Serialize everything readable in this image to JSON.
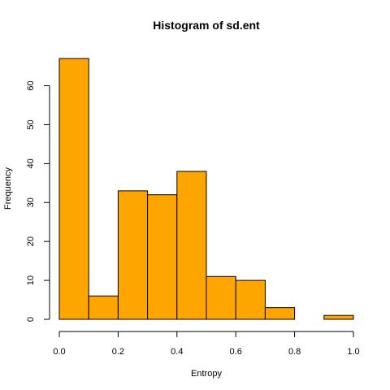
{
  "chart_data": {
    "type": "bar",
    "title": "Histogram of sd.ent",
    "xlabel": "Entropy",
    "ylabel": "Frequency",
    "bins": [
      {
        "from": 0.0,
        "to": 0.1,
        "count": 67
      },
      {
        "from": 0.1,
        "to": 0.2,
        "count": 6
      },
      {
        "from": 0.2,
        "to": 0.3,
        "count": 33
      },
      {
        "from": 0.3,
        "to": 0.4,
        "count": 32
      },
      {
        "from": 0.4,
        "to": 0.5,
        "count": 38
      },
      {
        "from": 0.5,
        "to": 0.6,
        "count": 11
      },
      {
        "from": 0.6,
        "to": 0.7,
        "count": 10
      },
      {
        "from": 0.7,
        "to": 0.8,
        "count": 3
      },
      {
        "from": 0.8,
        "to": 0.9,
        "count": 0
      },
      {
        "from": 0.9,
        "to": 1.0,
        "count": 1
      }
    ],
    "xlim": [
      0.0,
      1.0
    ],
    "ylim": [
      0,
      67
    ],
    "xticks": [
      0.0,
      0.2,
      0.4,
      0.6,
      0.8,
      1.0
    ],
    "xtick_labels": [
      "0.0",
      "0.2",
      "0.4",
      "0.6",
      "0.8",
      "1.0"
    ],
    "yticks": [
      0,
      10,
      20,
      30,
      40,
      50,
      60
    ],
    "ytick_labels": [
      "0",
      "10",
      "20",
      "30",
      "40",
      "50",
      "60"
    ],
    "bar_color": "#FFA500",
    "grid": false,
    "legend": "none"
  }
}
